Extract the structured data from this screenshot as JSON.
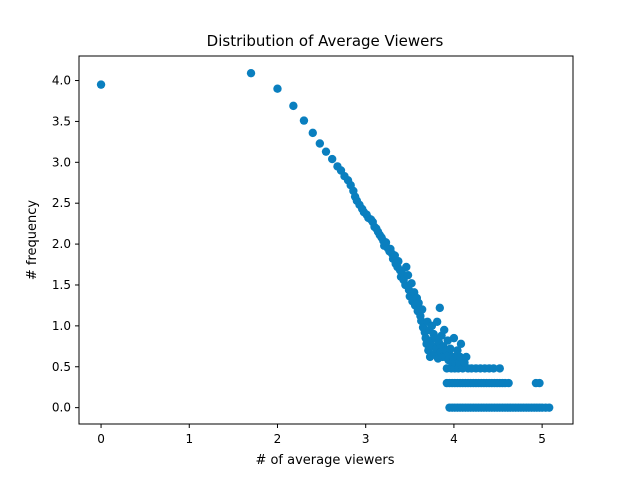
{
  "chart_data": {
    "type": "scatter",
    "title": "Distribution of Average Viewers",
    "xlabel": "# of average viewers",
    "ylabel": "# frequency",
    "xlim": [
      -0.25,
      5.35
    ],
    "ylim": [
      -0.2,
      4.3
    ],
    "xticks": [
      0,
      1,
      2,
      3,
      4,
      5
    ],
    "xtick_labels": [
      "0",
      "1",
      "2",
      "3",
      "4",
      "5"
    ],
    "yticks": [
      0.0,
      0.5,
      1.0,
      1.5,
      2.0,
      2.5,
      3.0,
      3.5,
      4.0
    ],
    "ytick_labels": [
      "0.0",
      "0.5",
      "1.0",
      "1.5",
      "2.0",
      "2.5",
      "3.0",
      "3.5",
      "4.0"
    ],
    "grid": false,
    "color": "#0a7fbf",
    "points": [
      [
        0.0,
        3.95
      ],
      [
        1.7,
        4.09
      ],
      [
        2.0,
        3.9
      ],
      [
        2.18,
        3.69
      ],
      [
        2.3,
        3.51
      ],
      [
        2.4,
        3.36
      ],
      [
        2.48,
        3.23
      ],
      [
        2.55,
        3.13
      ],
      [
        2.62,
        3.04
      ],
      [
        2.68,
        2.95
      ],
      [
        2.72,
        2.9
      ],
      [
        2.76,
        2.83
      ],
      [
        2.8,
        2.78
      ],
      [
        2.83,
        2.72
      ],
      [
        2.86,
        2.65
      ],
      [
        2.88,
        2.58
      ],
      [
        2.9,
        2.53
      ],
      [
        2.93,
        2.48
      ],
      [
        2.96,
        2.43
      ],
      [
        2.98,
        2.39
      ],
      [
        3.01,
        2.36
      ],
      [
        3.03,
        2.32
      ],
      [
        3.06,
        2.3
      ],
      [
        3.08,
        2.27
      ],
      [
        3.1,
        2.21
      ],
      [
        3.12,
        2.19
      ],
      [
        3.14,
        2.15
      ],
      [
        3.16,
        2.11
      ],
      [
        3.18,
        2.08
      ],
      [
        3.2,
        2.04
      ],
      [
        3.21,
        1.98
      ],
      [
        3.23,
        2.02
      ],
      [
        3.25,
        1.95
      ],
      [
        3.27,
        1.91
      ],
      [
        3.28,
        1.94
      ],
      [
        3.3,
        1.88
      ],
      [
        3.31,
        1.82
      ],
      [
        3.33,
        1.86
      ],
      [
        3.34,
        1.76
      ],
      [
        3.36,
        1.72
      ],
      [
        3.37,
        1.79
      ],
      [
        3.39,
        1.68
      ],
      [
        3.4,
        1.6
      ],
      [
        3.41,
        1.65
      ],
      [
        3.43,
        1.56
      ],
      [
        3.45,
        1.5
      ],
      [
        3.46,
        1.72
      ],
      [
        3.48,
        1.62
      ],
      [
        3.49,
        1.44
      ],
      [
        3.5,
        1.36
      ],
      [
        3.52,
        1.52
      ],
      [
        3.53,
        1.3
      ],
      [
        3.55,
        1.41
      ],
      [
        3.56,
        1.25
      ],
      [
        3.58,
        1.34
      ],
      [
        3.59,
        1.18
      ],
      [
        3.6,
        1.28
      ],
      [
        3.62,
        1.12
      ],
      [
        3.63,
        1.06
      ],
      [
        3.64,
        1.2
      ],
      [
        3.65,
        0.98
      ],
      [
        3.67,
        0.92
      ],
      [
        3.68,
        0.85
      ],
      [
        3.69,
        0.78
      ],
      [
        3.7,
        1.05
      ],
      [
        3.71,
        0.7
      ],
      [
        3.72,
        0.95
      ],
      [
        3.73,
        0.62
      ],
      [
        3.74,
        0.82
      ],
      [
        3.75,
        1.0
      ],
      [
        3.76,
        0.75
      ],
      [
        3.77,
        0.9
      ],
      [
        3.78,
        0.65
      ],
      [
        3.79,
        0.85
      ],
      [
        3.8,
        0.72
      ],
      [
        3.81,
        1.05
      ],
      [
        3.82,
        0.6
      ],
      [
        3.83,
        0.8
      ],
      [
        3.84,
        1.22
      ],
      [
        3.85,
        0.68
      ],
      [
        3.86,
        0.88
      ],
      [
        3.87,
        0.62
      ],
      [
        3.88,
        0.75
      ],
      [
        3.89,
        0.95
      ],
      [
        3.9,
        0.62
      ],
      [
        3.91,
        0.7
      ],
      [
        3.92,
        0.48
      ],
      [
        3.93,
        0.82
      ],
      [
        3.94,
        0.58
      ],
      [
        3.95,
        0.65
      ],
      [
        3.96,
        0.72
      ],
      [
        3.97,
        0.48
      ],
      [
        3.98,
        0.55
      ],
      [
        3.99,
        0.62
      ],
      [
        4.0,
        0.85
      ],
      [
        4.01,
        0.48
      ],
      [
        4.02,
        0.55
      ],
      [
        4.03,
        0.62
      ],
      [
        4.04,
        0.7
      ],
      [
        4.05,
        0.48
      ],
      [
        4.06,
        0.55
      ],
      [
        4.07,
        0.62
      ],
      [
        4.08,
        0.78
      ],
      [
        4.1,
        0.48
      ],
      [
        4.12,
        0.55
      ],
      [
        4.14,
        0.62
      ],
      [
        4.16,
        0.48
      ],
      [
        4.2,
        0.48
      ],
      [
        4.25,
        0.48
      ],
      [
        4.3,
        0.48
      ],
      [
        4.35,
        0.48
      ],
      [
        4.4,
        0.48
      ],
      [
        4.45,
        0.48
      ],
      [
        4.52,
        0.48
      ],
      [
        3.92,
        0.3
      ],
      [
        3.95,
        0.3
      ],
      [
        3.98,
        0.3
      ],
      [
        4.01,
        0.3
      ],
      [
        4.04,
        0.3
      ],
      [
        4.07,
        0.3
      ],
      [
        4.1,
        0.3
      ],
      [
        4.13,
        0.3
      ],
      [
        4.16,
        0.3
      ],
      [
        4.19,
        0.3
      ],
      [
        4.22,
        0.3
      ],
      [
        4.25,
        0.3
      ],
      [
        4.28,
        0.3
      ],
      [
        4.31,
        0.3
      ],
      [
        4.34,
        0.3
      ],
      [
        4.37,
        0.3
      ],
      [
        4.4,
        0.3
      ],
      [
        4.43,
        0.3
      ],
      [
        4.46,
        0.3
      ],
      [
        4.49,
        0.3
      ],
      [
        4.52,
        0.3
      ],
      [
        4.55,
        0.3
      ],
      [
        4.58,
        0.3
      ],
      [
        4.62,
        0.3
      ],
      [
        4.93,
        0.3
      ],
      [
        4.97,
        0.3
      ],
      [
        3.95,
        0.0
      ],
      [
        3.98,
        0.0
      ],
      [
        4.01,
        0.0
      ],
      [
        4.04,
        0.0
      ],
      [
        4.07,
        0.0
      ],
      [
        4.1,
        0.0
      ],
      [
        4.13,
        0.0
      ],
      [
        4.16,
        0.0
      ],
      [
        4.19,
        0.0
      ],
      [
        4.22,
        0.0
      ],
      [
        4.25,
        0.0
      ],
      [
        4.28,
        0.0
      ],
      [
        4.31,
        0.0
      ],
      [
        4.34,
        0.0
      ],
      [
        4.37,
        0.0
      ],
      [
        4.4,
        0.0
      ],
      [
        4.43,
        0.0
      ],
      [
        4.46,
        0.0
      ],
      [
        4.49,
        0.0
      ],
      [
        4.52,
        0.0
      ],
      [
        4.55,
        0.0
      ],
      [
        4.58,
        0.0
      ],
      [
        4.61,
        0.0
      ],
      [
        4.64,
        0.0
      ],
      [
        4.67,
        0.0
      ],
      [
        4.7,
        0.0
      ],
      [
        4.73,
        0.0
      ],
      [
        4.76,
        0.0
      ],
      [
        4.79,
        0.0
      ],
      [
        4.82,
        0.0
      ],
      [
        4.85,
        0.0
      ],
      [
        4.88,
        0.0
      ],
      [
        4.91,
        0.0
      ],
      [
        4.94,
        0.0
      ],
      [
        4.97,
        0.0
      ],
      [
        5.0,
        0.0
      ],
      [
        5.04,
        0.0
      ],
      [
        5.08,
        0.0
      ]
    ]
  }
}
